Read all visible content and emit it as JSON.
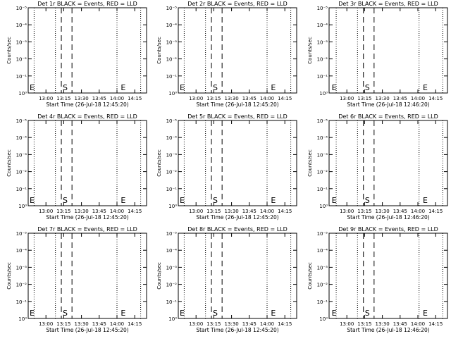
{
  "chart_data": [
    {
      "type": "line",
      "title": "Det 1r BLACK = Events, RED = LLD",
      "xlabel": "Start Time (26-Jul-18 12:45:20)",
      "ylabel": "Counts/sec",
      "x_ticks": [
        "13:00",
        "13:15",
        "13:30",
        "13:45",
        "14:00",
        "14:15"
      ],
      "y_ticks": [
        "10⁰",
        "10⁻¹",
        "10⁻²",
        "10⁻³",
        "10⁻⁴",
        "10⁻⁵"
      ],
      "y_scale": "log",
      "markers": [
        {
          "label": "E",
          "time": "12:45"
        },
        {
          "label": "S",
          "time": "13:13"
        },
        {
          "label": "E",
          "time": "14:02"
        }
      ],
      "dotted_lines": [
        "12:50",
        "13:08",
        "14:00",
        "14:20"
      ],
      "dashed_lines": [
        "13:13",
        "13:22"
      ],
      "series": []
    },
    {
      "type": "line",
      "title": "Det 2r BLACK = Events, RED = LLD",
      "xlabel": "Start Time (26-Jul-18 12:45:20)",
      "ylabel": "Counts/sec",
      "x_ticks": [
        "13:00",
        "13:15",
        "13:30",
        "13:45",
        "14:00",
        "14:15"
      ],
      "y_ticks": [
        "10⁰",
        "10⁻¹",
        "10⁻²",
        "10⁻³",
        "10⁻⁴",
        "10⁻⁵"
      ],
      "y_scale": "log",
      "markers": [
        {
          "label": "E",
          "time": "12:45"
        },
        {
          "label": "S",
          "time": "13:13"
        },
        {
          "label": "E",
          "time": "14:02"
        }
      ],
      "dotted_lines": [
        "12:50",
        "13:08",
        "14:00",
        "14:20"
      ],
      "dashed_lines": [
        "13:13",
        "13:22"
      ],
      "series": []
    },
    {
      "type": "line",
      "title": "Det 3r BLACK = Events, RED = LLD",
      "xlabel": "Start Time (26-Jul-18 12:46:20)",
      "ylabel": "Counts/sec",
      "x_ticks": [
        "13:00",
        "13:15",
        "13:30",
        "13:45",
        "14:00",
        "14:15"
      ],
      "y_ticks": [
        "10⁰",
        "10⁻¹",
        "10⁻²",
        "10⁻³",
        "10⁻⁴",
        "10⁻⁵"
      ],
      "y_scale": "log",
      "markers": [
        {
          "label": "E",
          "time": "12:46"
        },
        {
          "label": "S",
          "time": "13:14"
        },
        {
          "label": "E",
          "time": "14:03"
        }
      ],
      "dotted_lines": [
        "12:51",
        "13:09",
        "14:01",
        "14:21"
      ],
      "dashed_lines": [
        "13:14",
        "13:23"
      ],
      "series": []
    },
    {
      "type": "line",
      "title": "Det 4r BLACK = Events, RED = LLD",
      "xlabel": "Start Time (26-Jul-18 12:45:20)",
      "ylabel": "Counts/sec",
      "x_ticks": [
        "13:00",
        "13:15",
        "13:30",
        "13:45",
        "14:00",
        "14:15"
      ],
      "y_ticks": [
        "10⁰",
        "10⁻¹",
        "10⁻²",
        "10⁻³",
        "10⁻⁴",
        "10⁻⁵"
      ],
      "y_scale": "log",
      "markers": [
        {
          "label": "E",
          "time": "12:45"
        },
        {
          "label": "S",
          "time": "13:13"
        },
        {
          "label": "E",
          "time": "14:02"
        }
      ],
      "dotted_lines": [
        "12:50",
        "13:08",
        "14:00",
        "14:20"
      ],
      "dashed_lines": [
        "13:13",
        "13:22"
      ],
      "series": []
    },
    {
      "type": "line",
      "title": "Det 5r BLACK = Events, RED = LLD",
      "xlabel": "Start Time (26-Jul-18 12:45:20)",
      "ylabel": "Counts/sec",
      "x_ticks": [
        "13:00",
        "13:15",
        "13:30",
        "13:45",
        "14:00",
        "14:15"
      ],
      "y_ticks": [
        "10⁰",
        "10⁻¹",
        "10⁻²",
        "10⁻³",
        "10⁻⁴",
        "10⁻⁵"
      ],
      "y_scale": "log",
      "markers": [
        {
          "label": "E",
          "time": "12:45"
        },
        {
          "label": "S",
          "time": "13:13"
        },
        {
          "label": "E",
          "time": "14:02"
        }
      ],
      "dotted_lines": [
        "12:50",
        "13:08",
        "14:00",
        "14:20"
      ],
      "dashed_lines": [
        "13:13",
        "13:22"
      ],
      "series": []
    },
    {
      "type": "line",
      "title": "Det 6r BLACK = Events, RED = LLD",
      "xlabel": "Start Time (26-Jul-18 12:46:20)",
      "ylabel": "Counts/sec",
      "x_ticks": [
        "13:00",
        "13:15",
        "13:30",
        "13:45",
        "14:00",
        "14:15"
      ],
      "y_ticks": [
        "10⁰",
        "10⁻¹",
        "10⁻²",
        "10⁻³",
        "10⁻⁴",
        "10⁻⁵"
      ],
      "y_scale": "log",
      "markers": [
        {
          "label": "E",
          "time": "12:46"
        },
        {
          "label": "S",
          "time": "13:14"
        },
        {
          "label": "E",
          "time": "14:03"
        }
      ],
      "dotted_lines": [
        "12:51",
        "13:09",
        "14:01",
        "14:21"
      ],
      "dashed_lines": [
        "13:14",
        "13:23"
      ],
      "series": []
    },
    {
      "type": "line",
      "title": "Det 7r BLACK = Events, RED = LLD",
      "xlabel": "Start Time (26-Jul-18 12:45:20)",
      "ylabel": "Counts/sec",
      "x_ticks": [
        "13:00",
        "13:15",
        "13:30",
        "13:45",
        "14:00",
        "14:15"
      ],
      "y_ticks": [
        "10⁰",
        "10⁻¹",
        "10⁻²",
        "10⁻³",
        "10⁻⁴",
        "10⁻⁵"
      ],
      "y_scale": "log",
      "markers": [
        {
          "label": "E",
          "time": "12:45"
        },
        {
          "label": "S",
          "time": "13:13"
        },
        {
          "label": "E",
          "time": "14:02"
        }
      ],
      "dotted_lines": [
        "12:50",
        "13:08",
        "14:00",
        "14:20"
      ],
      "dashed_lines": [
        "13:13",
        "13:22"
      ],
      "series": []
    },
    {
      "type": "line",
      "title": "Det 8r BLACK = Events, RED = LLD",
      "xlabel": "Start Time (26-Jul-18 12:45:20)",
      "ylabel": "Counts/sec",
      "x_ticks": [
        "13:00",
        "13:15",
        "13:30",
        "13:45",
        "14:00",
        "14:15"
      ],
      "y_ticks": [
        "10⁰",
        "10⁻¹",
        "10⁻²",
        "10⁻³",
        "10⁻⁴",
        "10⁻⁵"
      ],
      "y_scale": "log",
      "markers": [
        {
          "label": "E",
          "time": "12:45"
        },
        {
          "label": "S",
          "time": "13:13"
        },
        {
          "label": "E",
          "time": "14:02"
        }
      ],
      "dotted_lines": [
        "12:50",
        "13:08",
        "14:00",
        "14:20"
      ],
      "dashed_lines": [
        "13:13",
        "13:22"
      ],
      "series": []
    },
    {
      "type": "line",
      "title": "Det 9r BLACK = Events, RED = LLD",
      "xlabel": "Start Time (26-Jul-18 12:46:20)",
      "ylabel": "Counts/sec",
      "x_ticks": [
        "13:00",
        "13:15",
        "13:30",
        "13:45",
        "14:00",
        "14:15"
      ],
      "y_ticks": [
        "10⁰",
        "10⁻¹",
        "10⁻²",
        "10⁻³",
        "10⁻⁴",
        "10⁻⁵"
      ],
      "y_scale": "log",
      "markers": [
        {
          "label": "E",
          "time": "12:46"
        },
        {
          "label": "S",
          "time": "13:14"
        },
        {
          "label": "E",
          "time": "14:03"
        }
      ],
      "dotted_lines": [
        "12:51",
        "13:09",
        "14:01",
        "14:21"
      ],
      "dashed_lines": [
        "13:14",
        "13:23"
      ],
      "series": []
    }
  ]
}
